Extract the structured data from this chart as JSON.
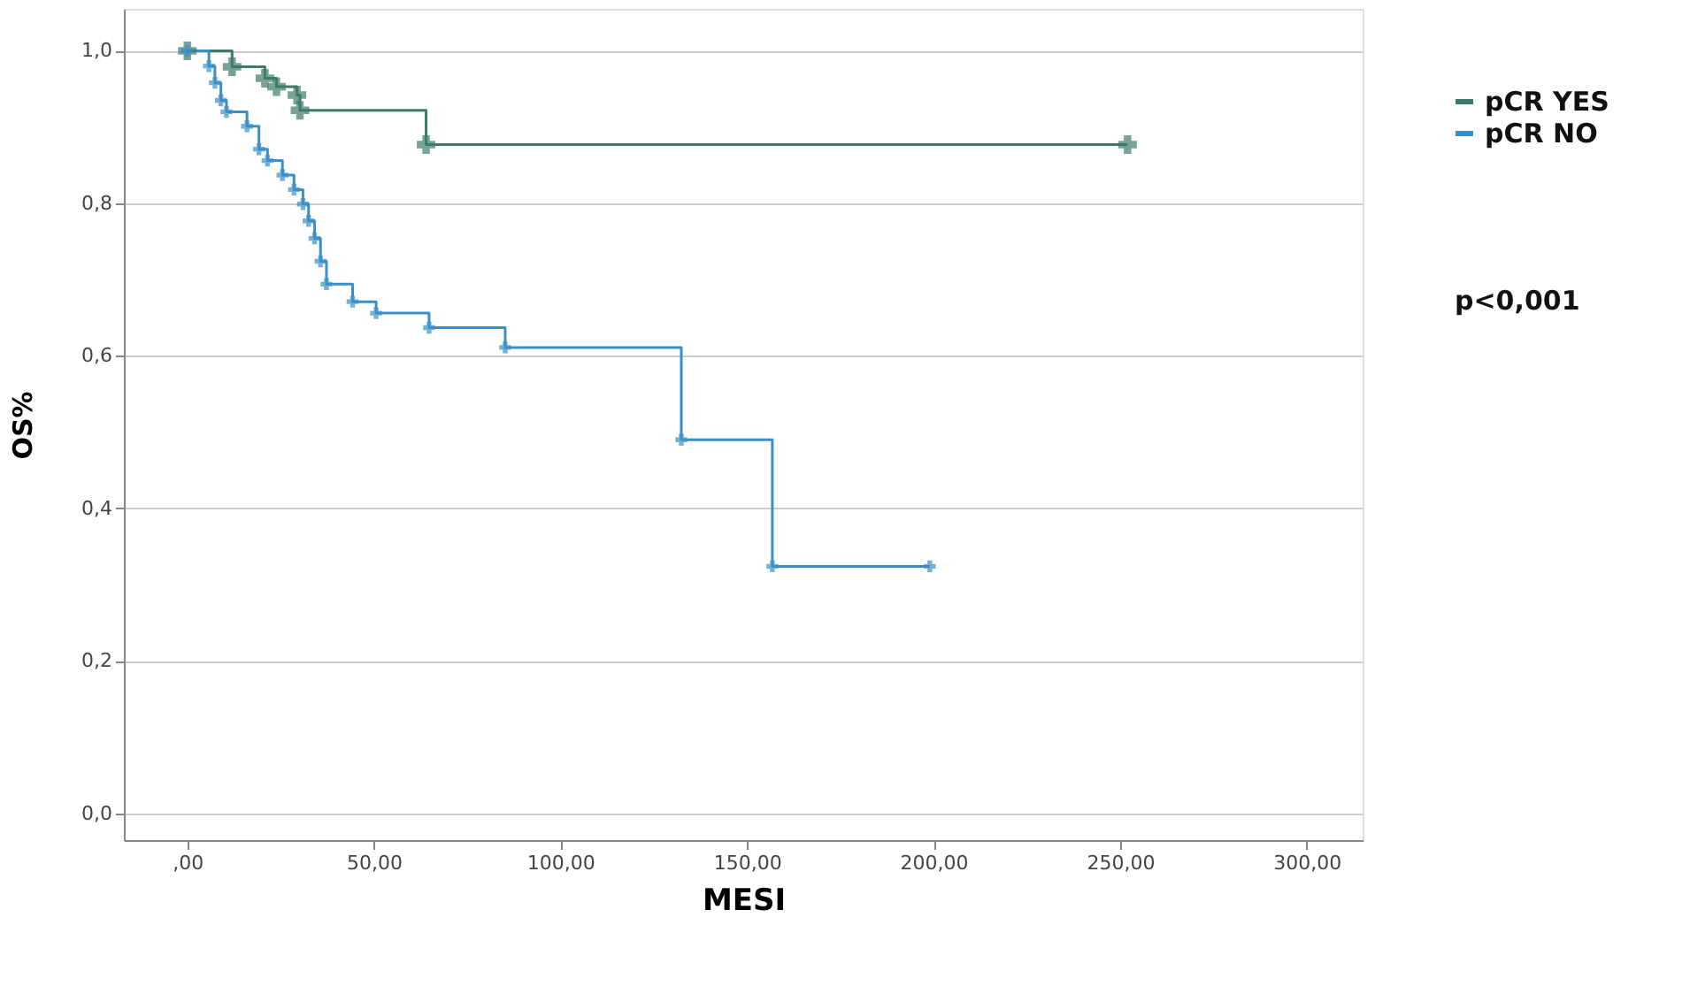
{
  "chart_data": {
    "type": "step",
    "xlabel": "MESI",
    "ylabel": "OS%",
    "xlim": [
      -17,
      315
    ],
    "ylim": [
      -0.035,
      1.055
    ],
    "xticks": [
      {
        "value": 0,
        "label": ",00"
      },
      {
        "value": 50,
        "label": "50,00"
      },
      {
        "value": 100,
        "label": "100,00"
      },
      {
        "value": 150,
        "label": "150,00"
      },
      {
        "value": 200,
        "label": "200,00"
      },
      {
        "value": 250,
        "label": "250,00"
      },
      {
        "value": 300,
        "label": "300,00"
      }
    ],
    "yticks": [
      {
        "value": 0,
        "label": "0,0"
      },
      {
        "value": 0.2,
        "label": "0,2"
      },
      {
        "value": 0.4,
        "label": "0,4"
      },
      {
        "value": 0.6,
        "label": "0,6"
      },
      {
        "value": 0.8,
        "label": "0,8"
      },
      {
        "value": 1.0,
        "label": "1,0"
      }
    ],
    "grid": "y",
    "legend": "top right",
    "marker": "cross",
    "line_style": "solid",
    "annotations": [
      "p<0,001"
    ],
    "series": [
      {
        "name": "pCR YES",
        "color": "#3d7a6a",
        "x": [
          0,
          12,
          20.8,
          23.9,
          29.4,
          30.2,
          64,
          252
        ],
        "values": [
          1.0,
          0.979,
          0.964,
          0.953,
          0.942,
          0.922,
          0.877,
          0.877
        ]
      },
      {
        "name": "pCR NO",
        "color": "#3a8fc8",
        "x": [
          0,
          5.8,
          7.4,
          9.0,
          10.5,
          16,
          19.2,
          21.5,
          25.5,
          28.6,
          31,
          32.5,
          34.1,
          35.7,
          37.3,
          44.3,
          50.6,
          64.8,
          85.2,
          132.4,
          156.8,
          199
        ],
        "values": [
          1.0,
          0.98,
          0.958,
          0.935,
          0.92,
          0.901,
          0.871,
          0.856,
          0.837,
          0.818,
          0.799,
          0.777,
          0.754,
          0.724,
          0.694,
          0.671,
          0.656,
          0.637,
          0.611,
          0.49,
          0.324,
          0.324
        ]
      }
    ]
  }
}
